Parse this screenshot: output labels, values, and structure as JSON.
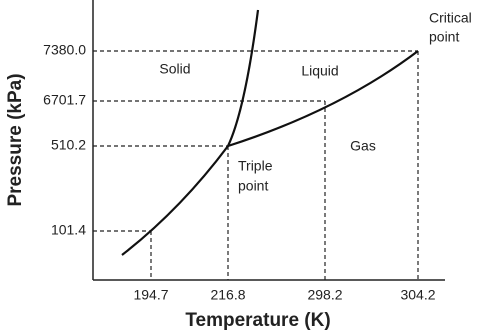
{
  "diagram": {
    "y_axis_label": "Pressure (kPa)",
    "x_axis_label": "Temperature (K)",
    "y_ticks": [
      "7380.0",
      "6701.7",
      "510.2",
      "101.4"
    ],
    "x_ticks": [
      "194.7",
      "216.8",
      "298.2",
      "304.2"
    ],
    "regions": [
      "Solid",
      "Liquid",
      "Gas"
    ],
    "triple_point": [
      "Triple",
      "point"
    ],
    "critical_point": [
      "Critical",
      "point"
    ]
  }
}
